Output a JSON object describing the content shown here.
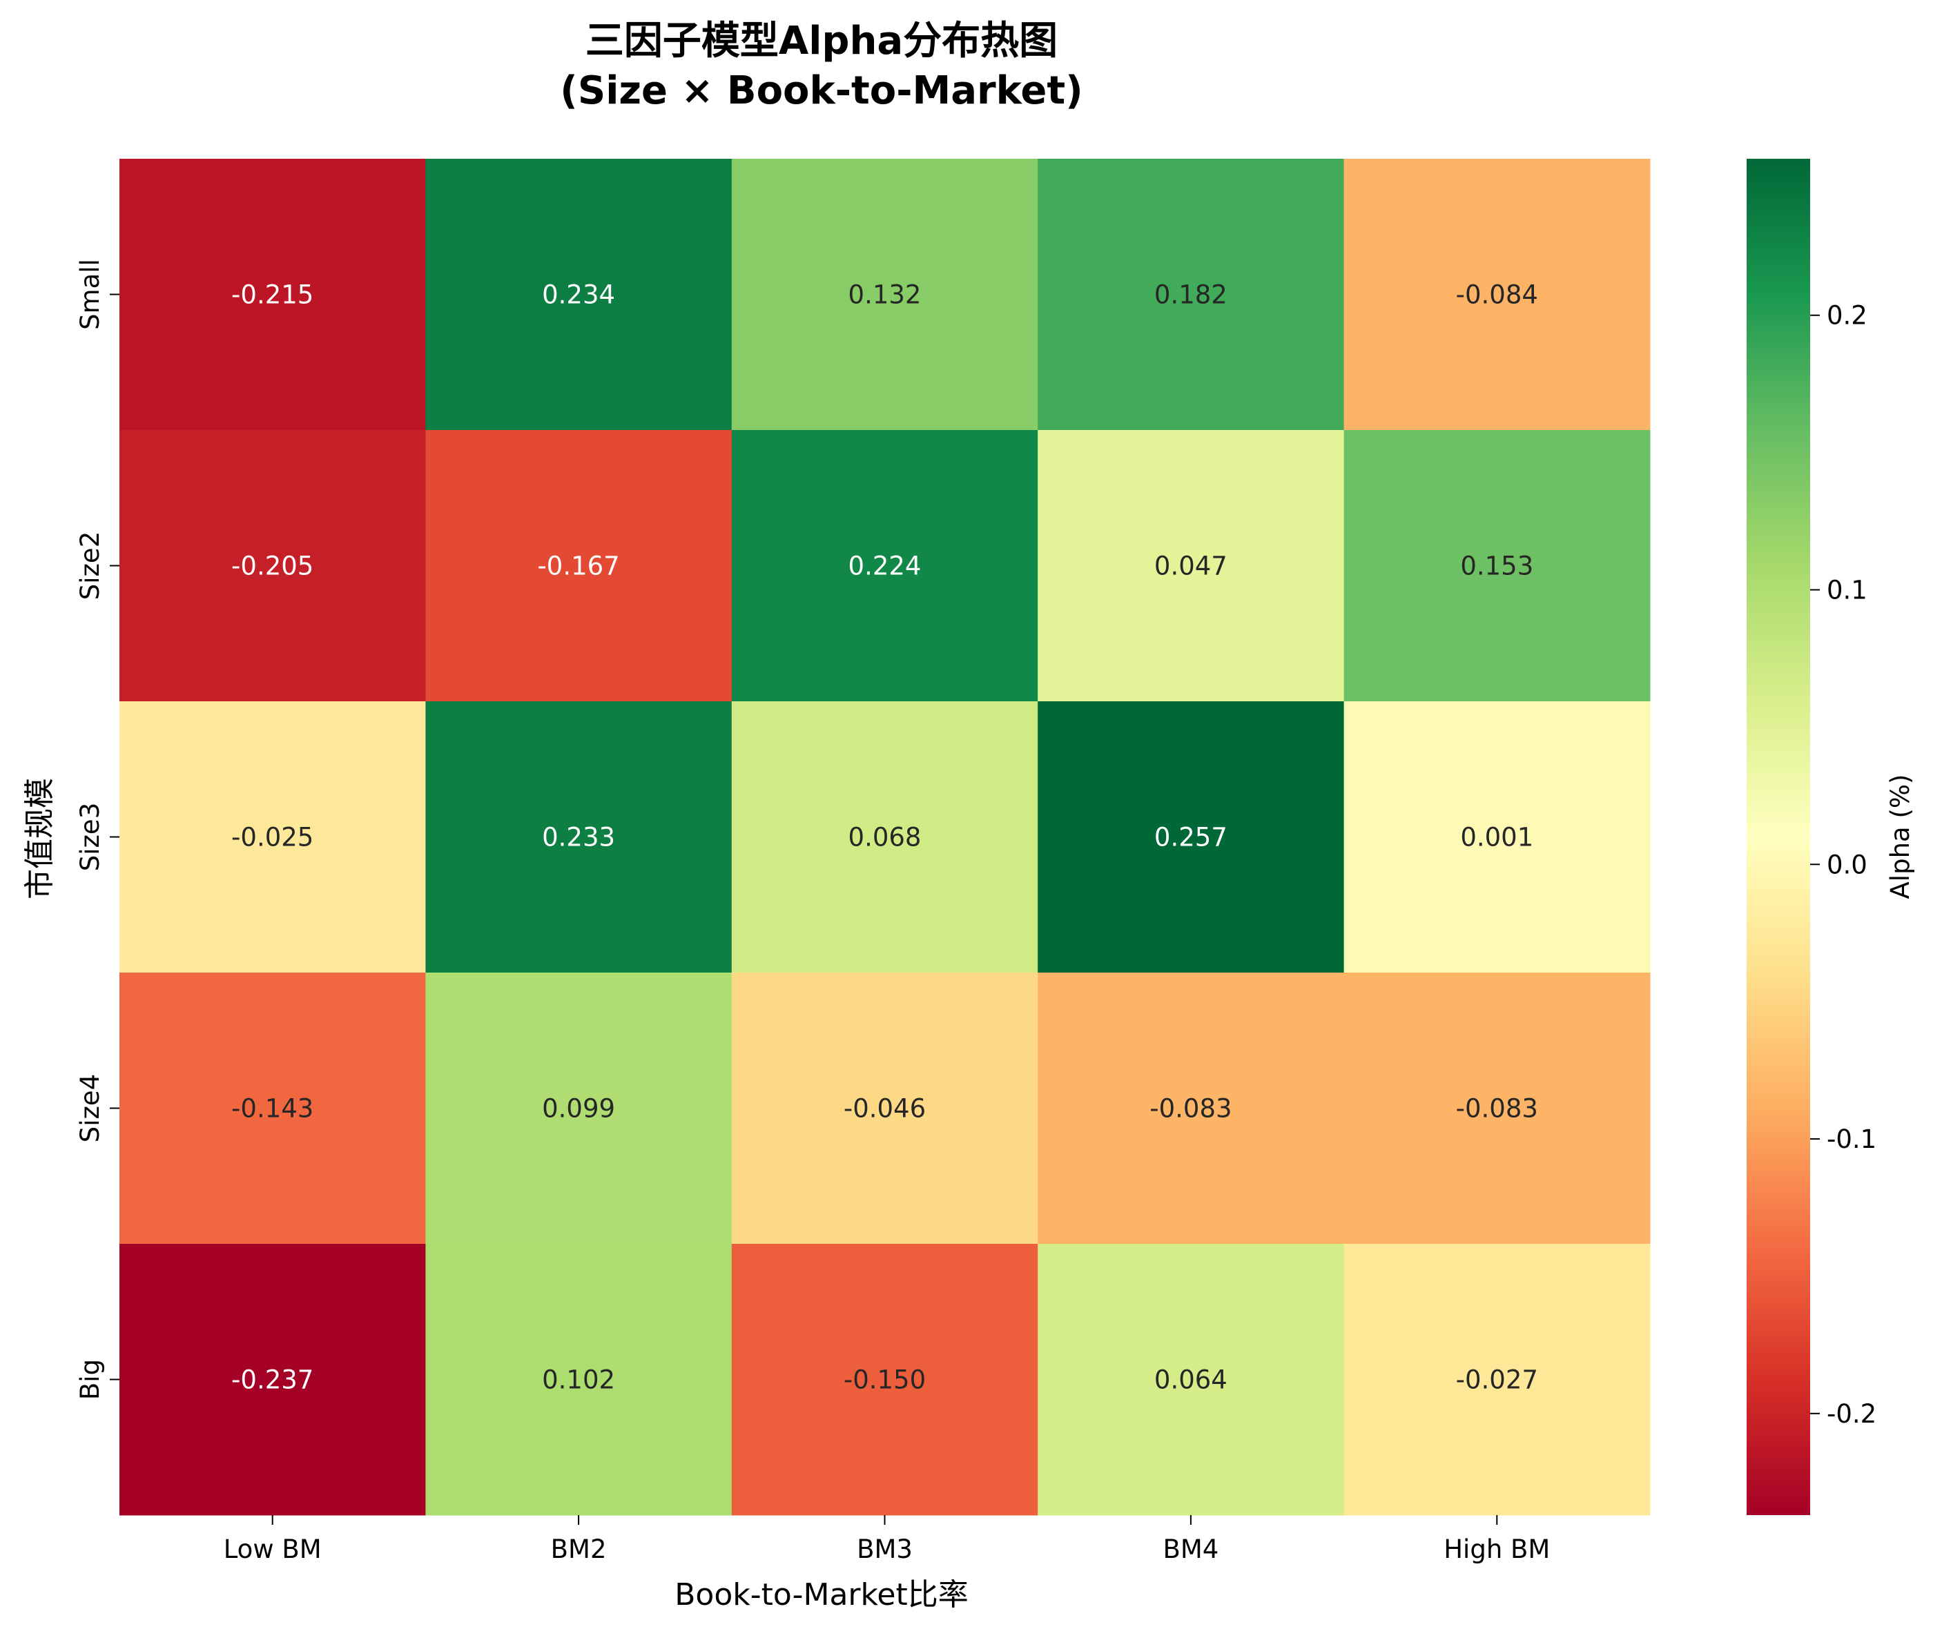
{
  "chart_data": {
    "type": "heatmap",
    "title": "三因子模型Alpha分布热图",
    "subtitle": "(Size × Book-to-Market)",
    "xlabel": "Book-to-Market比率",
    "ylabel": "市值规模",
    "x_categories": [
      "Low BM",
      "BM2",
      "BM3",
      "BM4",
      "High BM"
    ],
    "y_categories": [
      "Small",
      "Size2",
      "Size3",
      "Size4",
      "Big"
    ],
    "values": [
      [
        -0.215,
        0.234,
        0.132,
        0.182,
        -0.084
      ],
      [
        -0.205,
        -0.167,
        0.224,
        0.047,
        0.153
      ],
      [
        -0.025,
        0.233,
        0.068,
        0.257,
        0.001
      ],
      [
        -0.143,
        0.099,
        -0.046,
        -0.083,
        -0.083
      ],
      [
        -0.237,
        0.102,
        -0.15,
        0.064,
        -0.027
      ]
    ],
    "value_labels": [
      [
        "-0.215",
        "0.234",
        "0.132",
        "0.182",
        "-0.084"
      ],
      [
        "-0.205",
        "-0.167",
        "0.224",
        "0.047",
        "0.153"
      ],
      [
        "-0.025",
        "0.233",
        "0.068",
        "0.257",
        "0.001"
      ],
      [
        "-0.143",
        "0.099",
        "-0.046",
        "-0.083",
        "-0.083"
      ],
      [
        "-0.237",
        "0.102",
        "-0.150",
        "0.064",
        "-0.027"
      ]
    ],
    "colormap": "RdYlGn",
    "vmin": -0.237,
    "vmax": 0.257,
    "colorbar": {
      "label": "Alpha (%)",
      "ticks": [
        -0.2,
        -0.1,
        0.0,
        0.1,
        0.2
      ],
      "tick_labels": [
        "-0.2",
        "-0.1",
        "0.0",
        "0.1",
        "0.2"
      ]
    },
    "grid": false,
    "legend": "none"
  }
}
